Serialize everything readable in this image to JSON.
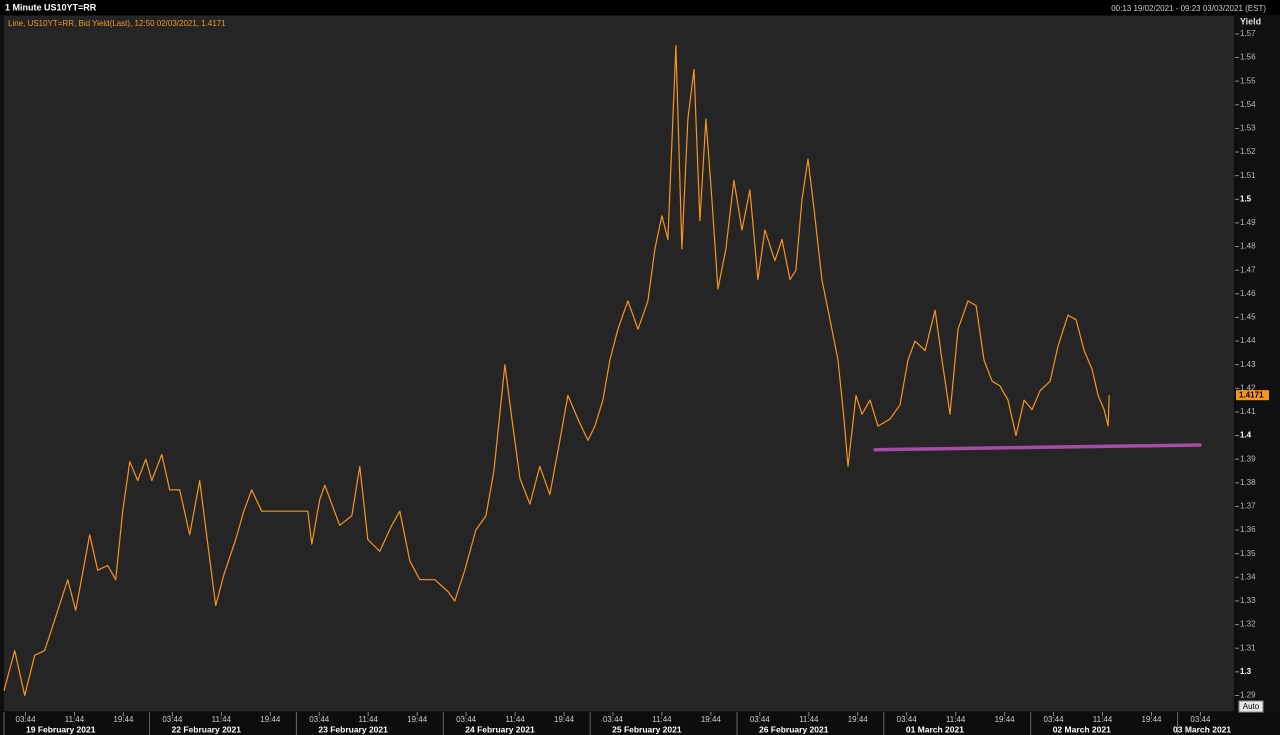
{
  "chart_data": {
    "type": "line",
    "title": "1 Minute US10YT=RR",
    "range_label": "00:13 19/02/2021 - 09:23 03/03/2021 (EST)",
    "y_axis_label": "Yield",
    "auto_button": "Auto",
    "xlim": [
      "00:13 19/02/2021",
      "09:23 03/03/2021"
    ],
    "ylim": [
      1.283,
      1.578
    ],
    "yticks": [
      1.29,
      1.3,
      1.31,
      1.32,
      1.33,
      1.34,
      1.35,
      1.36,
      1.37,
      1.38,
      1.39,
      1.4,
      1.41,
      1.42,
      1.43,
      1.44,
      1.45,
      1.46,
      1.47,
      1.48,
      1.49,
      1.5,
      1.51,
      1.52,
      1.53,
      1.54,
      1.55,
      1.56,
      1.57
    ],
    "grid": false,
    "xticks": [
      {
        "value": "03:44 19/02/2021",
        "label": "03:44"
      },
      {
        "value": "11:44 19/02/2021",
        "label": "11:44"
      },
      {
        "value": "19:44 19/02/2021",
        "label": "19:44"
      },
      {
        "value": "03:44 22/02/2021",
        "label": "03:44"
      },
      {
        "value": "11:44 22/02/2021",
        "label": "11:44"
      },
      {
        "value": "19:44 22/02/2021",
        "label": "19:44"
      },
      {
        "value": "03:44 23/02/2021",
        "label": "03:44"
      },
      {
        "value": "11:44 23/02/2021",
        "label": "11:44"
      },
      {
        "value": "19:44 23/02/2021",
        "label": "19:44"
      },
      {
        "value": "03:44 24/02/2021",
        "label": "03:44"
      },
      {
        "value": "11:44 24/02/2021",
        "label": "11:44"
      },
      {
        "value": "19:44 24/02/2021",
        "label": "19:44"
      },
      {
        "value": "03:44 25/02/2021",
        "label": "03:44"
      },
      {
        "value": "11:44 25/02/2021",
        "label": "11:44"
      },
      {
        "value": "19:44 25/02/2021",
        "label": "19:44"
      },
      {
        "value": "03:44 26/02/2021",
        "label": "03:44"
      },
      {
        "value": "11:44 26/02/2021",
        "label": "11:44"
      },
      {
        "value": "19:44 26/02/2021",
        "label": "19:44"
      },
      {
        "value": "03:44 01/03/2021",
        "label": "03:44"
      },
      {
        "value": "11:44 01/03/2021",
        "label": "11:44"
      },
      {
        "value": "19:44 01/03/2021",
        "label": "19:44"
      },
      {
        "value": "03:44 02/03/2021",
        "label": "03:44"
      },
      {
        "value": "11:44 02/03/2021",
        "label": "11:44"
      },
      {
        "value": "19:44 02/03/2021",
        "label": "19:44"
      },
      {
        "value": "03:44 03/03/2021",
        "label": "03:44"
      }
    ],
    "date_labels": [
      {
        "value": "00:00 19/02/2021",
        "label": "19 February 2021"
      },
      {
        "value": "00:00 22/02/2021",
        "label": "22 February 2021"
      },
      {
        "value": "00:00 23/02/2021",
        "label": "23 February 2021"
      },
      {
        "value": "00:00 24/02/2021",
        "label": "24 February 2021"
      },
      {
        "value": "00:00 25/02/2021",
        "label": "25 February 2021"
      },
      {
        "value": "00:00 26/02/2021",
        "label": "26 February 2021"
      },
      {
        "value": "00:00 01/03/2021",
        "label": "01 March 2021"
      },
      {
        "value": "00:00 02/03/2021",
        "label": "02 March 2021"
      },
      {
        "value": "00:00 03/03/2021",
        "label": "03 March 2021"
      }
    ],
    "last_value": 1.4171,
    "series": [
      {
        "name": "Line, US10YT=RR, Bid Yield(Last), 12:50 02/03/2021, 1.4171",
        "color": "#f7941d",
        "x": [
          "00:13 19/02/2021",
          "01:58 19/02/2021",
          "03:36 19/02/2021",
          "05:14 19/02/2021",
          "06:52 19/02/2021",
          "08:30 19/02/2021",
          "10:38 19/02/2021",
          "11:56 19/02/2021",
          "14:13 19/02/2021",
          "15:32 19/02/2021",
          "17:10 19/02/2021",
          "18:28 19/02/2021",
          "19:37 19/02/2021",
          "20:46 19/02/2021",
          "22:04 19/02/2021",
          "23:23 19/02/2021",
          "00:22 22/02/2021",
          "02:00 22/02/2021",
          "03:18 22/02/2021",
          "04:56 22/02/2021",
          "06:34 22/02/2021",
          "08:12 22/02/2021",
          "09:31 22/02/2021",
          "10:49 22/02/2021",
          "12:08 22/02/2021",
          "14:05 22/02/2021",
          "15:24 22/02/2021",
          "16:42 22/02/2021",
          "18:20 22/02/2021",
          "19:19 22/02/2021",
          "01:52 23/02/2021",
          "02:31 23/02/2021",
          "03:49 23/02/2021",
          "04:38 23/02/2021",
          "07:05 23/02/2021",
          "09:03 23/02/2021",
          "10:22 23/02/2021",
          "11:40 23/02/2021",
          "13:38 23/02/2021",
          "15:35 23/02/2021",
          "16:54 23/02/2021",
          "18:32 23/02/2021",
          "20:10 23/02/2021",
          "22:37 23/02/2021",
          "00:45 24/02/2021",
          "01:53 24/02/2021",
          "03:31 24/02/2021",
          "05:19 24/02/2021",
          "06:58 24/02/2021",
          "08:16 24/02/2021",
          "10:04 24/02/2021",
          "11:13 24/02/2021",
          "12:31 24/02/2021",
          "14:09 24/02/2021",
          "15:47 24/02/2021",
          "17:25 24/02/2021",
          "19:04 24/02/2021",
          "20:22 24/02/2021",
          "22:00 24/02/2021",
          "23:38 24/02/2021",
          "00:47 25/02/2021",
          "02:05 25/02/2021",
          "03:14 25/02/2021",
          "04:32 25/02/2021",
          "06:10 25/02/2021",
          "07:49 25/02/2021",
          "09:26 25/02/2021",
          "10:35 25/02/2021",
          "11:44 25/02/2021",
          "12:43 25/02/2021",
          "14:01 25/02/2021",
          "15:00 25/02/2021",
          "15:59 25/02/2021",
          "16:58 25/02/2021",
          "17:56 25/02/2021",
          "18:55 25/02/2021",
          "19:54 25/02/2021",
          "20:53 25/02/2021",
          "22:11 25/02/2021",
          "23:30 25/02/2021",
          "00:49 26/02/2021",
          "02:07 26/02/2021",
          "03:25 26/02/2021",
          "04:34 26/02/2021",
          "06:12 26/02/2021",
          "07:21 26/02/2021",
          "08:40 26/02/2021",
          "09:38 26/02/2021",
          "10:37 26/02/2021",
          "11:36 26/02/2021",
          "12:35 26/02/2021",
          "13:53 26/02/2021",
          "15:12 26/02/2021",
          "16:30 26/02/2021",
          "17:29 26/02/2021",
          "18:08 26/02/2021",
          "19:27 26/02/2021",
          "20:26 26/02/2021",
          "21:44 26/02/2021",
          "23:03 26/02/2021",
          "01:00 01/03/2021",
          "02:38 01/03/2021",
          "03:57 01/03/2021",
          "05:05 01/03/2021",
          "06:44 01/03/2021",
          "08:22 01/03/2021",
          "09:30 01/03/2021",
          "10:49 01/03/2021",
          "12:07 01/03/2021",
          "13:45 01/03/2021",
          "15:04 01/03/2021",
          "16:22 01/03/2021",
          "17:41 01/03/2021",
          "18:59 01/03/2021",
          "20:17 01/03/2021",
          "21:36 01/03/2021",
          "22:55 01/03/2021",
          "00:13 02/03/2021",
          "01:32 02/03/2021",
          "03:10 02/03/2021",
          "04:28 02/03/2021",
          "06:06 02/03/2021",
          "07:25 02/03/2021",
          "08:43 02/03/2021",
          "10:02 02/03/2021",
          "11:01 02/03/2021",
          "12:00 02/03/2021",
          "12:39 02/03/2021",
          "12:50 02/03/2021"
        ],
        "values": [
          1.292,
          1.309,
          1.29,
          1.307,
          1.309,
          1.322,
          1.339,
          1.326,
          1.358,
          1.343,
          1.345,
          1.339,
          1.368,
          1.389,
          1.381,
          1.39,
          1.381,
          1.392,
          1.377,
          1.377,
          1.358,
          1.381,
          1.354,
          1.328,
          1.341,
          1.356,
          1.368,
          1.377,
          1.368,
          1.368,
          1.368,
          1.354,
          1.373,
          1.379,
          1.362,
          1.366,
          1.387,
          1.356,
          1.351,
          1.362,
          1.368,
          1.347,
          1.339,
          1.339,
          1.334,
          1.33,
          1.343,
          1.36,
          1.366,
          1.385,
          1.43,
          1.407,
          1.382,
          1.371,
          1.387,
          1.375,
          1.398,
          1.417,
          1.407,
          1.398,
          1.404,
          1.415,
          1.432,
          1.445,
          1.457,
          1.445,
          1.457,
          1.479,
          1.493,
          1.483,
          1.565,
          1.479,
          1.534,
          1.555,
          1.491,
          1.534,
          1.5,
          1.462,
          1.479,
          1.508,
          1.487,
          1.504,
          1.466,
          1.487,
          1.474,
          1.483,
          1.466,
          1.47,
          1.5,
          1.517,
          1.496,
          1.466,
          1.449,
          1.432,
          1.407,
          1.387,
          1.417,
          1.409,
          1.415,
          1.404,
          1.407,
          1.413,
          1.432,
          1.44,
          1.436,
          1.453,
          1.432,
          1.409,
          1.445,
          1.457,
          1.455,
          1.432,
          1.423,
          1.421,
          1.415,
          1.4,
          1.415,
          1.411,
          1.419,
          1.423,
          1.438,
          1.451,
          1.449,
          1.436,
          1.428,
          1.417,
          1.411,
          1.404,
          1.4171
        ]
      }
    ],
    "trendline": {
      "color": "#a64ca6",
      "x": [
        "22:34 26/02/2021",
        "03:41 03/03/2021"
      ],
      "values": [
        1.394,
        1.396
      ]
    }
  }
}
